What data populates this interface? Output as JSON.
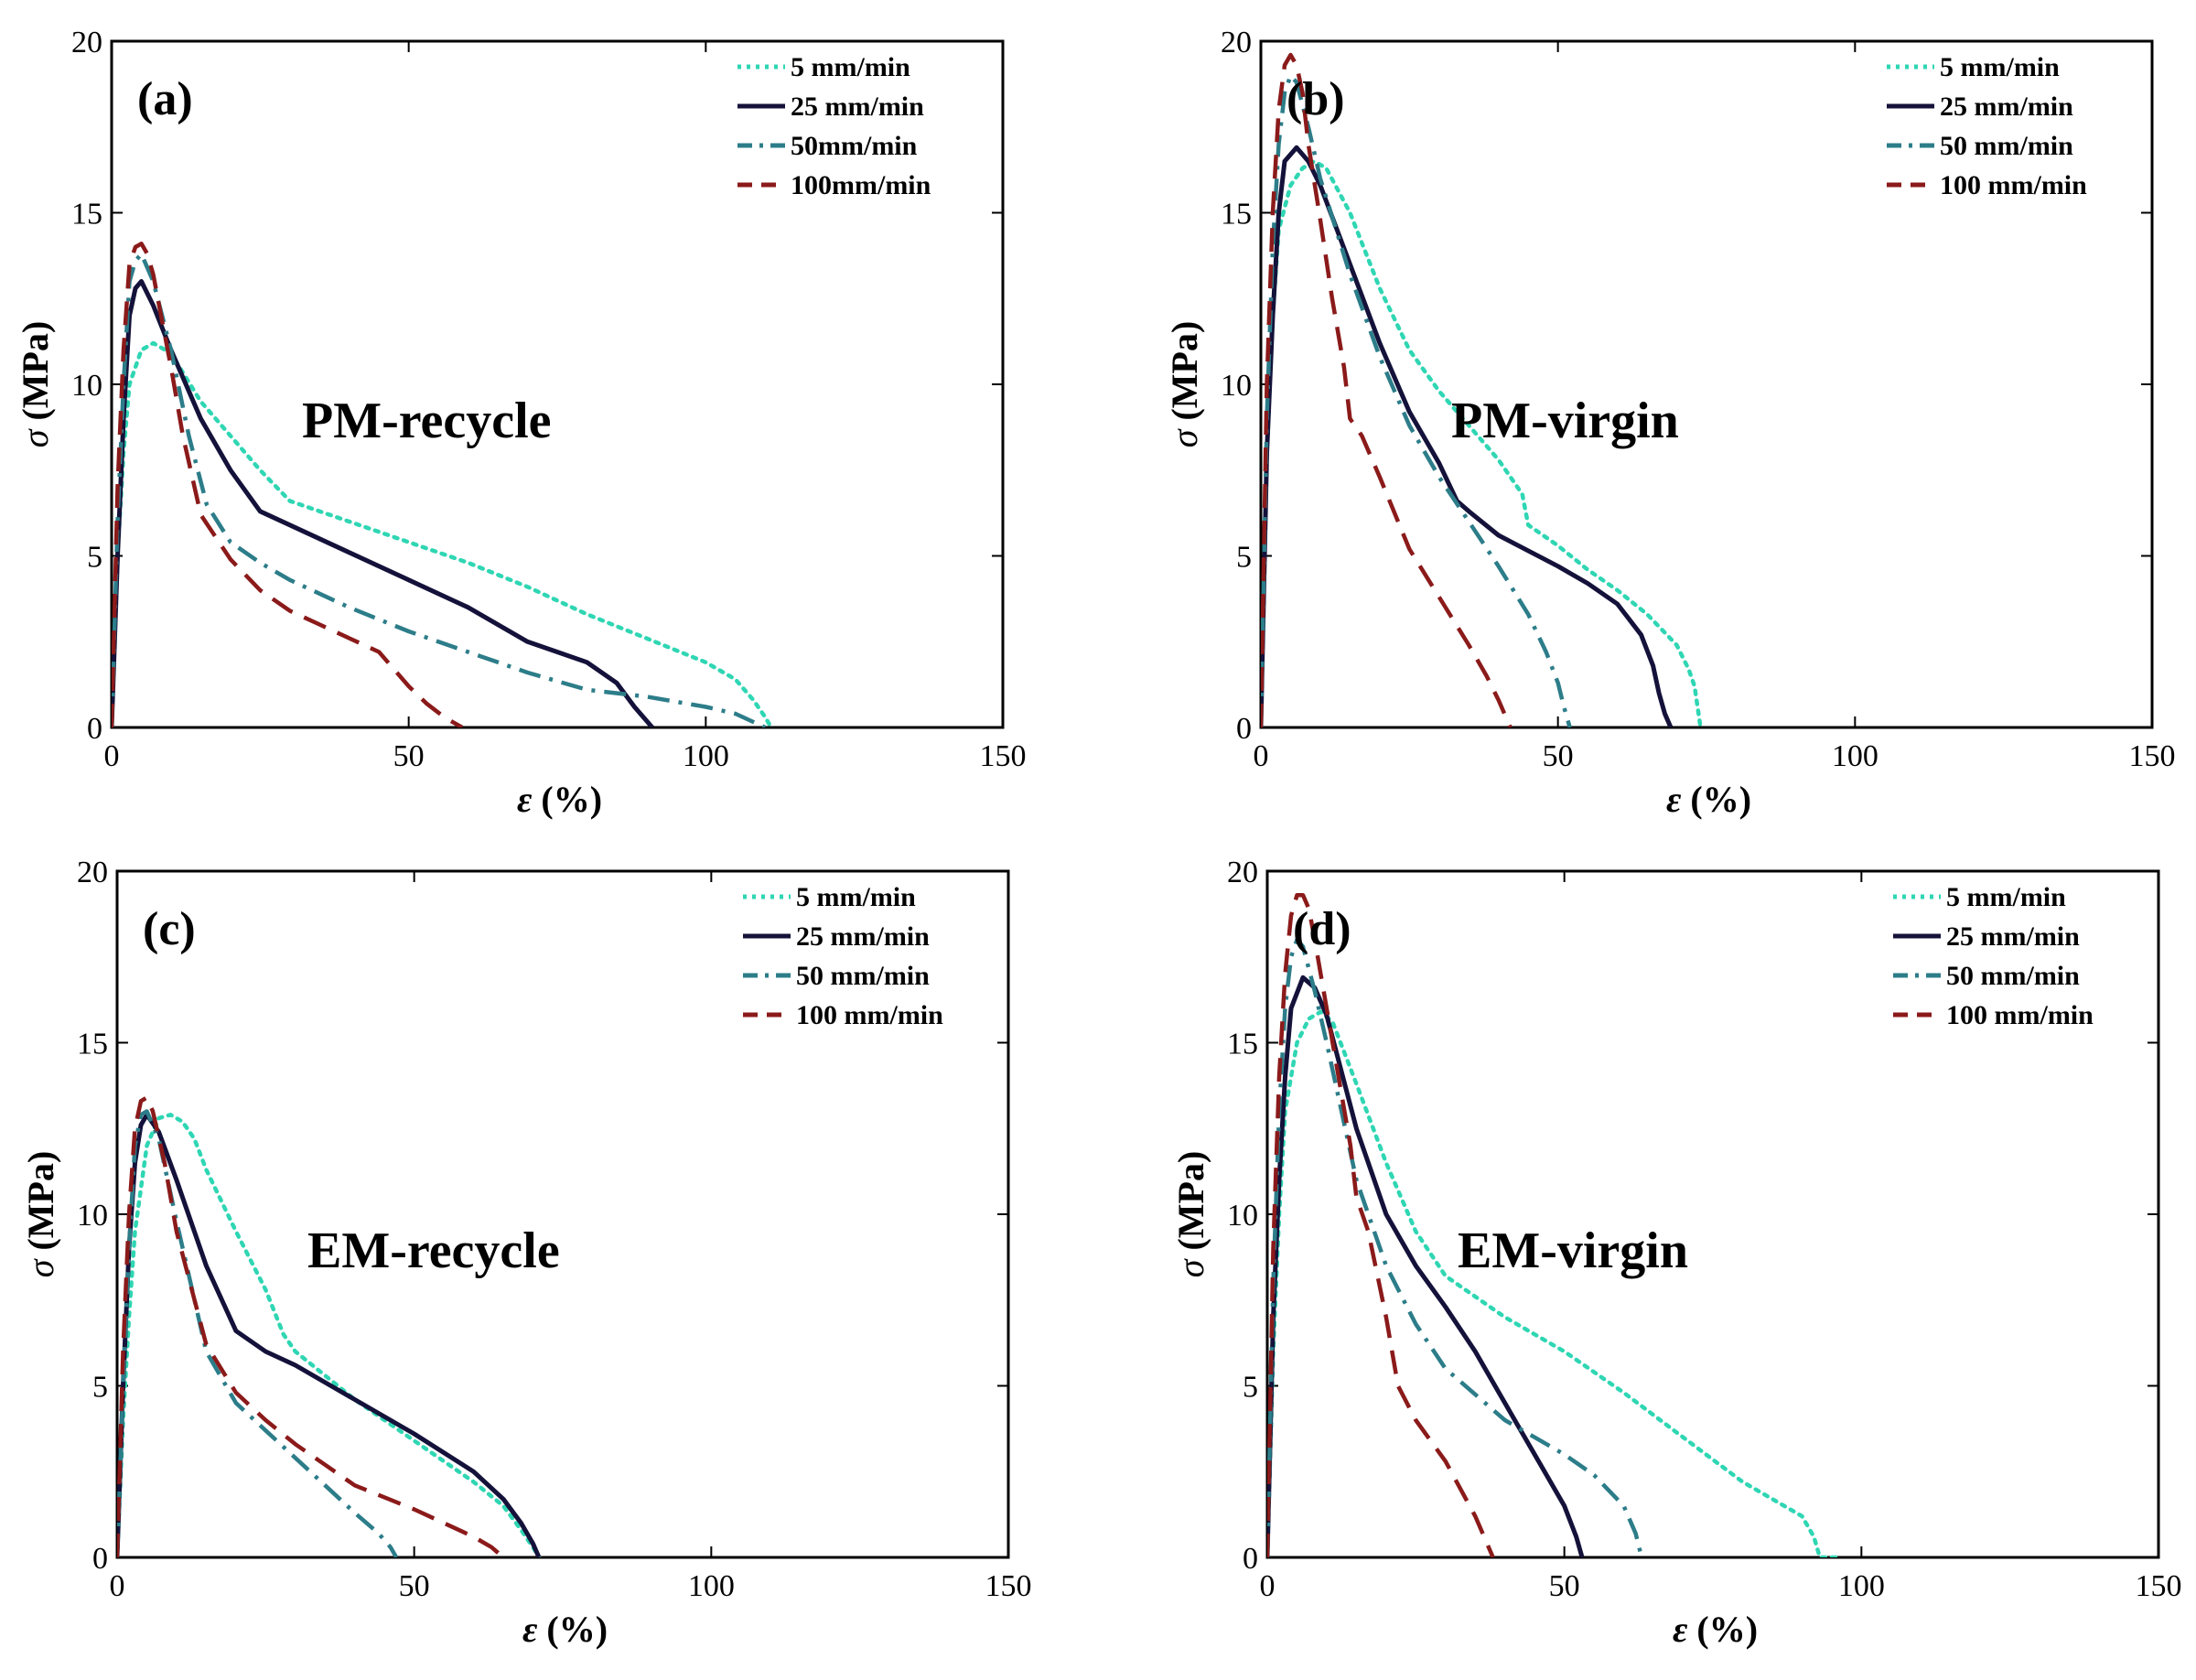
{
  "colors": {
    "5 mm/min": "#2fd6b3",
    "25 mm/min": "#14123a",
    "50 mm/min": "#2c7d89",
    "100 mm/min": "#8b1a1a"
  },
  "chart_data": [
    {
      "type": "line",
      "panel_tag": "(a)",
      "annotation": "PM-recycle",
      "xlabel_symbol": "ε",
      "xlabel_unit": "(%)",
      "ylabel_symbol": "σ",
      "ylabel_unit": "(MPa)",
      "xlim": [
        0,
        150
      ],
      "ylim": [
        0,
        20
      ],
      "xticks": [
        0,
        50,
        100,
        150
      ],
      "yticks": [
        0,
        5,
        10,
        15,
        20
      ],
      "grid": false,
      "legend_position": "top-right",
      "series": [
        {
          "name": "5 mm/min",
          "style": "dotted",
          "x": [
            0,
            1,
            2,
            3,
            5,
            7,
            10,
            15,
            20,
            25,
            30,
            40,
            50,
            60,
            70,
            80,
            90,
            100,
            105,
            108,
            110,
            111
          ],
          "y": [
            0,
            5,
            8,
            10,
            11,
            11.2,
            10.9,
            9.5,
            8.5,
            7.5,
            6.6,
            6.0,
            5.4,
            4.8,
            4.1,
            3.3,
            2.6,
            1.9,
            1.4,
            0.8,
            0.3,
            0
          ]
        },
        {
          "name": "25 mm/min",
          "style": "solid",
          "x": [
            0,
            1,
            2,
            3,
            4,
            5,
            7,
            10,
            15,
            20,
            25,
            30,
            40,
            50,
            60,
            70,
            75,
            80,
            85,
            88,
            90,
            91
          ],
          "y": [
            0,
            5,
            9,
            12,
            12.8,
            13.0,
            12.3,
            11.0,
            9.0,
            7.5,
            6.3,
            5.9,
            5.1,
            4.3,
            3.5,
            2.5,
            2.2,
            1.9,
            1.3,
            0.6,
            0.2,
            0
          ]
        },
        {
          "name": "50mm/min",
          "style": "dashdot",
          "x": [
            0,
            1,
            2,
            3,
            4,
            5,
            7,
            10,
            13,
            16,
            20,
            25,
            30,
            40,
            50,
            60,
            70,
            80,
            90,
            100,
            105,
            110
          ],
          "y": [
            0,
            6,
            10,
            13,
            13.6,
            13.8,
            13.0,
            11.0,
            8.5,
            6.5,
            5.4,
            4.8,
            4.3,
            3.5,
            2.8,
            2.2,
            1.6,
            1.1,
            0.9,
            0.6,
            0.4,
            0
          ]
        },
        {
          "name": "100mm/min",
          "style": "dashed",
          "x": [
            0,
            1,
            2,
            3,
            4,
            5,
            6,
            7,
            8,
            10,
            12,
            15,
            20,
            25,
            30,
            35,
            40,
            45,
            50,
            53,
            56,
            59
          ],
          "y": [
            0,
            7,
            11,
            13.5,
            14.0,
            14.1,
            13.8,
            13.2,
            12.3,
            10.5,
            8.5,
            6.2,
            4.9,
            4.0,
            3.4,
            3.0,
            2.6,
            2.2,
            1.2,
            0.7,
            0.3,
            0
          ]
        }
      ]
    },
    {
      "type": "line",
      "panel_tag": "(b)",
      "annotation": "PM-virgin",
      "xlabel_symbol": "ε",
      "xlabel_unit": "(%)",
      "ylabel_symbol": "σ",
      "ylabel_unit": "(MPa)",
      "xlim": [
        0,
        150
      ],
      "ylim": [
        0,
        20
      ],
      "xticks": [
        0,
        50,
        100,
        150
      ],
      "yticks": [
        0,
        5,
        10,
        15,
        20
      ],
      "grid": false,
      "legend_position": "top-right",
      "series": [
        {
          "name": "5 mm/min",
          "style": "dotted",
          "x": [
            0,
            1,
            2,
            3,
            5,
            7,
            9,
            11,
            15,
            20,
            25,
            30,
            35,
            40,
            44,
            45,
            50,
            55,
            60,
            65,
            70,
            72,
            73,
            74
          ],
          "y": [
            0,
            8,
            12,
            14.5,
            15.8,
            16.3,
            16.5,
            16.3,
            15.0,
            12.8,
            11.0,
            9.8,
            8.8,
            7.8,
            6.8,
            5.9,
            5.3,
            4.6,
            4.0,
            3.3,
            2.4,
            1.7,
            1.2,
            0
          ]
        },
        {
          "name": "25 mm/min",
          "style": "solid",
          "x": [
            0,
            1,
            2,
            3,
            4,
            6,
            8,
            10,
            15,
            20,
            25,
            30,
            33,
            35,
            40,
            50,
            55,
            60,
            64,
            66,
            67,
            68,
            69
          ],
          "y": [
            0,
            8,
            12,
            15,
            16.5,
            16.9,
            16.5,
            15.8,
            13.5,
            11.2,
            9.2,
            7.7,
            6.6,
            6.3,
            5.6,
            4.7,
            4.2,
            3.6,
            2.7,
            1.8,
            1.0,
            0.4,
            0
          ]
        },
        {
          "name": "50 mm/min",
          "style": "dashdot",
          "x": [
            0,
            1,
            2,
            3,
            4,
            5,
            6,
            8,
            10,
            15,
            20,
            25,
            30,
            35,
            40,
            45,
            48,
            50,
            51,
            52
          ],
          "y": [
            0,
            9,
            14,
            17,
            18.5,
            19.0,
            18.8,
            17.5,
            16.0,
            13.2,
            10.8,
            8.8,
            7.3,
            6.0,
            4.7,
            3.3,
            2.2,
            1.3,
            0.6,
            0
          ]
        },
        {
          "name": "100 mm/min",
          "style": "dashed",
          "x": [
            0,
            1,
            2,
            3,
            4,
            5,
            6,
            7,
            8,
            10,
            12,
            14,
            15,
            17,
            20,
            25,
            30,
            35,
            38,
            40,
            42
          ],
          "y": [
            0,
            10,
            15,
            18,
            19.3,
            19.6,
            19.3,
            18.5,
            17.0,
            14.8,
            12.5,
            10.5,
            9.0,
            8.5,
            7.3,
            5.2,
            3.8,
            2.4,
            1.5,
            0.8,
            0
          ]
        }
      ]
    },
    {
      "type": "line",
      "panel_tag": "(c)",
      "annotation": "EM-recycle",
      "xlabel_symbol": "ε",
      "xlabel_unit": "(%)",
      "ylabel_symbol": "σ",
      "ylabel_unit": "(MPa)",
      "xlim": [
        0,
        150
      ],
      "ylim": [
        0,
        20
      ],
      "xticks": [
        0,
        50,
        100,
        150
      ],
      "yticks": [
        0,
        5,
        10,
        15,
        20
      ],
      "grid": false,
      "legend_position": "top-right",
      "series": [
        {
          "name": "5 mm/min",
          "style": "dotted",
          "x": [
            0,
            1,
            2,
            3,
            5,
            7,
            9,
            11,
            13,
            15,
            20,
            25,
            28,
            30,
            35,
            40,
            50,
            60,
            65,
            68,
            70,
            71
          ],
          "y": [
            0,
            4,
            7,
            9.5,
            12,
            12.8,
            12.9,
            12.7,
            12.2,
            11.3,
            9.5,
            7.8,
            6.5,
            6.0,
            5.3,
            4.6,
            3.4,
            2.2,
            1.5,
            0.8,
            0.3,
            0
          ]
        },
        {
          "name": "25 mm/min",
          "style": "solid",
          "x": [
            0,
            1,
            2,
            3,
            4,
            5,
            7,
            10,
            15,
            20,
            25,
            30,
            40,
            50,
            60,
            65,
            68,
            70,
            71
          ],
          "y": [
            0,
            5,
            9,
            11.5,
            12.6,
            12.9,
            12.4,
            11.0,
            8.5,
            6.6,
            6.0,
            5.6,
            4.6,
            3.6,
            2.5,
            1.7,
            1.0,
            0.4,
            0
          ]
        },
        {
          "name": "50 mm/min",
          "style": "dashdot",
          "x": [
            0,
            1,
            2,
            3,
            4,
            5,
            7,
            10,
            15,
            20,
            25,
            30,
            35,
            40,
            44,
            46,
            47
          ],
          "y": [
            0,
            5,
            9,
            12,
            12.9,
            13.0,
            12.2,
            9.8,
            6.0,
            4.5,
            3.7,
            2.9,
            2.1,
            1.3,
            0.7,
            0.3,
            0
          ]
        },
        {
          "name": "100 mm/min",
          "style": "dashed",
          "x": [
            0,
            1,
            2,
            3,
            4,
            5,
            6,
            8,
            10,
            15,
            20,
            25,
            30,
            35,
            40,
            50,
            55,
            60,
            63,
            65
          ],
          "y": [
            0,
            6,
            10,
            12.5,
            13.3,
            13.4,
            13.0,
            11.5,
            9.5,
            6.2,
            4.8,
            4.0,
            3.3,
            2.7,
            2.1,
            1.4,
            1.0,
            0.6,
            0.3,
            0
          ]
        }
      ]
    },
    {
      "type": "line",
      "panel_tag": "(d)",
      "annotation": "EM-virgin",
      "xlabel_symbol": "ε",
      "xlabel_unit": "(%)",
      "ylabel_symbol": "σ",
      "ylabel_unit": "(MPa)",
      "xlim": [
        0,
        150
      ],
      "ylim": [
        0,
        20
      ],
      "xticks": [
        0,
        50,
        100,
        150
      ],
      "yticks": [
        0,
        5,
        10,
        15,
        20
      ],
      "grid": false,
      "legend_position": "top-right",
      "series": [
        {
          "name": "5 mm/min",
          "style": "dotted",
          "x": [
            0,
            1,
            2,
            3,
            5,
            7,
            9,
            11,
            15,
            20,
            25,
            30,
            40,
            50,
            60,
            70,
            80,
            90,
            92,
            93,
            96
          ],
          "y": [
            0,
            6,
            10,
            13,
            15.0,
            15.7,
            15.9,
            15.6,
            13.8,
            11.5,
            9.5,
            8.2,
            7.0,
            6.0,
            4.8,
            3.5,
            2.2,
            1.2,
            0.6,
            0,
            0
          ]
        },
        {
          "name": "25 mm/min",
          "style": "solid",
          "x": [
            0,
            1,
            2,
            3,
            4,
            6,
            8,
            10,
            15,
            20,
            25,
            30,
            35,
            40,
            45,
            50,
            52,
            53
          ],
          "y": [
            0,
            7,
            11,
            14,
            16.0,
            16.9,
            16.6,
            15.8,
            12.5,
            10.0,
            8.5,
            7.3,
            6.0,
            4.5,
            3.0,
            1.5,
            0.6,
            0
          ]
        },
        {
          "name": "50 mm/min",
          "style": "dashdot",
          "x": [
            0,
            1,
            2,
            3,
            4,
            5,
            6,
            8,
            10,
            15,
            20,
            25,
            30,
            40,
            50,
            55,
            60,
            62,
            63
          ],
          "y": [
            0,
            8,
            13,
            16,
            17.5,
            18.0,
            17.8,
            16.5,
            15.0,
            11.0,
            8.5,
            6.8,
            5.5,
            4.0,
            3.0,
            2.4,
            1.5,
            0.7,
            0
          ]
        },
        {
          "name": "100 mm/min",
          "style": "dashed",
          "x": [
            0,
            1,
            2,
            3,
            4,
            5,
            6,
            7,
            8,
            10,
            12,
            14,
            15,
            17,
            20,
            22,
            25,
            30,
            35,
            38
          ],
          "y": [
            0,
            9,
            14,
            17,
            18.7,
            19.3,
            19.3,
            18.9,
            18.0,
            16.0,
            14.0,
            12.0,
            10.5,
            9.5,
            7.0,
            5.0,
            4.0,
            2.8,
            1.2,
            0
          ]
        }
      ]
    }
  ]
}
